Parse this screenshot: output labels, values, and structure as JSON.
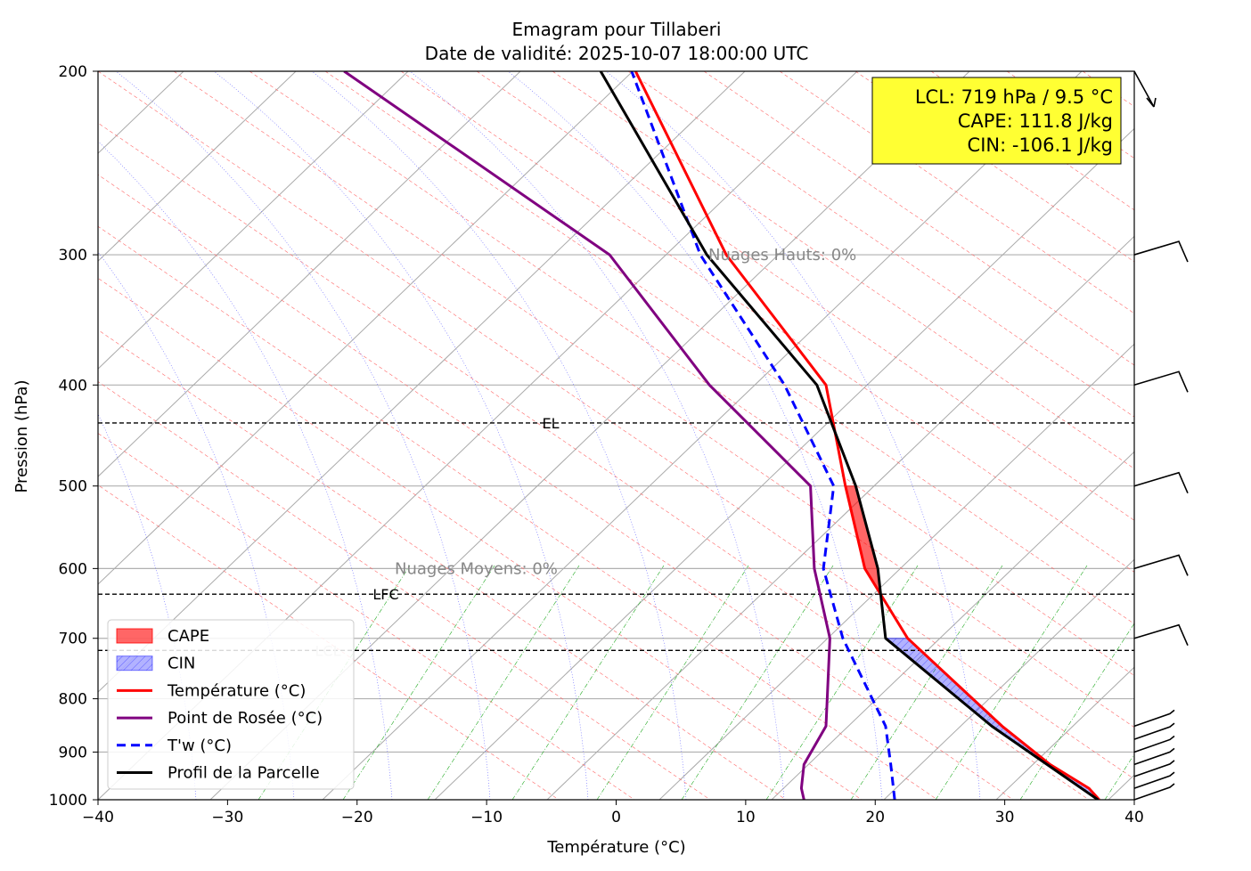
{
  "chart_data": {
    "type": "line",
    "title": "Emagram pour Tillaberi",
    "subtitle": "Date de validité: 2025-10-07 18:00:00 UTC",
    "xlabel": "Température (°C)",
    "ylabel": "Pression (hPa)",
    "xlim": [
      -40,
      40
    ],
    "ylim": [
      1000,
      200
    ],
    "y_scale": "log",
    "x_ticks": [
      -40,
      -30,
      -20,
      -10,
      0,
      10,
      20,
      30,
      40
    ],
    "x_tick_labels": [
      "−40",
      "−30",
      "−20",
      "−10",
      "0",
      "10",
      "20",
      "30",
      "40"
    ],
    "y_ticks": [
      1000,
      900,
      800,
      700,
      600,
      500,
      400,
      300,
      200
    ],
    "y_tick_labels": [
      "1000",
      "900",
      "800",
      "700",
      "600",
      "500",
      "400",
      "300",
      "200"
    ],
    "grid": true,
    "legend_position": "lower-left",
    "series": [
      {
        "name": "Température (°C)",
        "color": "#ff0000",
        "style": "solid",
        "points": [
          [
            37.3,
            1000
          ],
          [
            36.5,
            975
          ],
          [
            33.5,
            925
          ],
          [
            29.8,
            850
          ],
          [
            22.5,
            700
          ],
          [
            19.2,
            600
          ],
          [
            17.7,
            500
          ],
          [
            16.2,
            400
          ],
          [
            8.5,
            300
          ],
          [
            1.5,
            200
          ]
        ]
      },
      {
        "name": "Point de Rosée (°C)",
        "color": "#800080",
        "style": "solid",
        "points": [
          [
            14.5,
            1000
          ],
          [
            14.3,
            975
          ],
          [
            14.5,
            925
          ],
          [
            16.2,
            850
          ],
          [
            16.5,
            700
          ],
          [
            15.3,
            600
          ],
          [
            15.0,
            500
          ],
          [
            7.2,
            400
          ],
          [
            -0.5,
            300
          ],
          [
            -21.0,
            200
          ]
        ]
      },
      {
        "name": "T'w (°C)",
        "color": "#0000ff",
        "style": "dashed",
        "points": [
          [
            21.5,
            1000
          ],
          [
            21.2,
            925
          ],
          [
            20.8,
            850
          ],
          [
            17.5,
            700
          ],
          [
            16.0,
            600
          ],
          [
            16.8,
            500
          ],
          [
            13.0,
            400
          ],
          [
            6.5,
            300
          ],
          [
            1.2,
            200
          ]
        ]
      },
      {
        "name": "Profil de la Parcelle",
        "color": "#000000",
        "style": "solid",
        "points": [
          [
            37.2,
            1000
          ],
          [
            29.0,
            850
          ],
          [
            20.8,
            700
          ],
          [
            20.2,
            600
          ],
          [
            18.5,
            500
          ],
          [
            15.5,
            400
          ],
          [
            7.0,
            300
          ],
          [
            -1.2,
            200
          ]
        ]
      }
    ],
    "shaded_areas": [
      {
        "name": "CAPE",
        "color": "#ff0000",
        "p_range": [
          635,
          500
        ]
      },
      {
        "name": "CIN",
        "color": "#0000ff",
        "p_range": [
          1000,
          700
        ]
      }
    ],
    "levels": [
      {
        "label": "EL",
        "pressure": 435
      },
      {
        "label": "LFC",
        "pressure": 635
      },
      {
        "label": "LCL",
        "pressure": 719
      }
    ],
    "layer_annotations": [
      {
        "text": "Nuages Hauts: 0%",
        "pressure": 300
      },
      {
        "text": "Nuages Moyens: 0%",
        "pressure": 600
      }
    ],
    "info_box": {
      "lines": [
        "LCL: 719 hPa / 9.5 °C",
        "CAPE: 111.8 J/kg",
        "CIN: -106.1 J/kg"
      ],
      "background": "#ffff33"
    },
    "legend": [
      {
        "label": "CAPE",
        "kind": "patch",
        "color": "#ff0000"
      },
      {
        "label": "CIN",
        "kind": "patch-hatched",
        "color": "#0000ff"
      },
      {
        "label": "Température (°C)",
        "kind": "line",
        "color": "#ff0000"
      },
      {
        "label": "Point de Rosée (°C)",
        "kind": "line",
        "color": "#800080"
      },
      {
        "label": "T'w (°C)",
        "kind": "dashed",
        "color": "#0000ff"
      },
      {
        "label": "Profil de la Parcelle",
        "kind": "line",
        "color": "#000000"
      }
    ],
    "wind_barb_levels": [
      200,
      300,
      400,
      500,
      600,
      700,
      850,
      875,
      900,
      925,
      950,
      975,
      1000
    ]
  }
}
